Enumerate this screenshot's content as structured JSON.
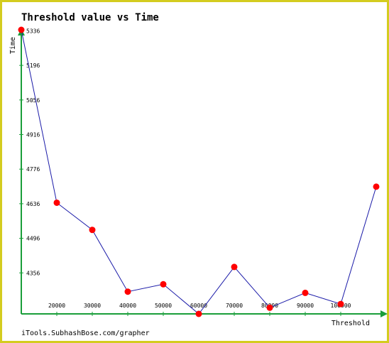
{
  "chart_data": {
    "type": "line",
    "title": "Threshold value vs Time",
    "xlabel": "Threshold",
    "ylabel": "Time",
    "x_tick_labels": [
      "20000",
      "30000",
      "40000",
      "50000",
      "60000",
      "70000",
      "80000",
      "90000",
      "100000"
    ],
    "y_tick_labels": [
      "5336",
      "5196",
      "5056",
      "4916",
      "4776",
      "4636",
      "4496",
      "4356"
    ],
    "y_ticks": [
      5336,
      5196,
      5056,
      4916,
      4776,
      4636,
      4496,
      4356
    ],
    "series": [
      {
        "x": [
          10000,
          20000,
          30000,
          40000,
          50000,
          60000,
          70000,
          80000,
          90000,
          100000,
          110000
        ],
        "values": [
          5340,
          4640,
          4530,
          4280,
          4310,
          4190,
          4380,
          4215,
          4275,
          4230,
          4705
        ],
        "color": "#1a1aa8",
        "marker_color": "#ff0000"
      }
    ],
    "xlim": [
      10000,
      110000
    ],
    "ylim": [
      4190,
      5340
    ],
    "grid": false,
    "axis_color": "#1a9e3a"
  },
  "credit": "iTools.SubhashBose.com/grapher",
  "colors": {
    "frame": "#d4cc1f",
    "axis": "#1a9e3a",
    "line": "#1a1aa8",
    "marker": "#ff0000"
  }
}
